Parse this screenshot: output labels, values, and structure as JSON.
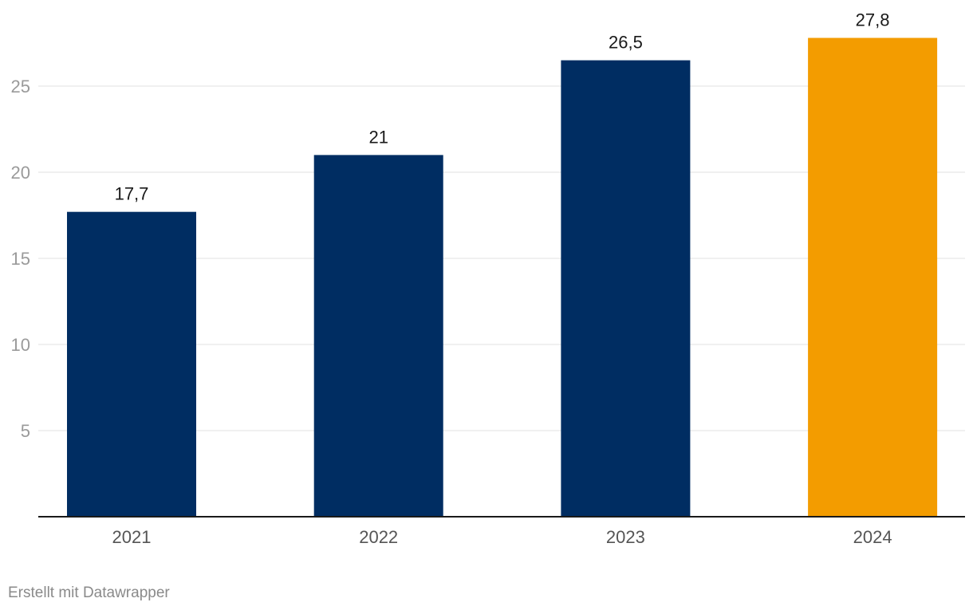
{
  "chart_data": {
    "type": "bar",
    "categories": [
      "2021",
      "2022",
      "2023",
      "2024"
    ],
    "values": [
      17.7,
      21,
      26.5,
      27.8
    ],
    "value_labels": [
      "17,7",
      "21",
      "26,5",
      "27,8"
    ],
    "colors": [
      "#002d62",
      "#002d62",
      "#002d62",
      "#f39c00"
    ],
    "yticks": [
      5,
      10,
      15,
      20,
      25
    ],
    "ylim": [
      0,
      30
    ],
    "grid": true,
    "title": "",
    "xlabel": "",
    "ylabel": ""
  },
  "credit": "Erstellt mit Datawrapper"
}
